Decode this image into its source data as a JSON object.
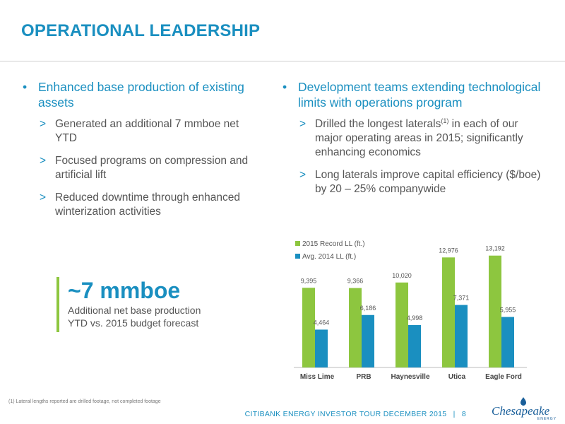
{
  "title": "OPERATIONAL LEADERSHIP",
  "left": {
    "bullet": "Enhanced base production of existing assets",
    "subs": [
      "Generated an additional 7 mmboe net YTD",
      "Focused programs on compression and artificial lift",
      "Reduced downtime through enhanced winterization activities"
    ]
  },
  "right": {
    "bullet": "Development teams extending technological limits with operations program",
    "sub1_a": "Drilled the longest laterals",
    "sub1_sup": "(1)",
    "sub1_b": " in each of our major operating areas in 2015; significantly enhancing economics",
    "sub2": "Long laterals improve capital efficiency ($/boe) by 20 – 25% companywide"
  },
  "callout": {
    "big": "~7 mmboe",
    "line1": "Additional net base production",
    "line2": "YTD vs. 2015 budget forecast"
  },
  "bullet_glyph": "•",
  "chevron_glyph": ">",
  "chart_data": {
    "type": "bar",
    "categories": [
      "Miss Lime",
      "PRB",
      "Haynesville",
      "Utica",
      "Eagle Ford"
    ],
    "series": [
      {
        "name": "2015 Record LL (ft.)",
        "values": [
          9395,
          9366,
          10020,
          12976,
          13192
        ],
        "labels": [
          "9,395",
          "9,366",
          "10,020",
          "12,976",
          "13,192"
        ],
        "color": "#8dc63f"
      },
      {
        "name": "Avg. 2014 LL (ft.)",
        "values": [
          4464,
          6186,
          4998,
          7371,
          5955
        ],
        "labels": [
          "4,464",
          "6,186",
          "4,998",
          "7,371",
          "5,955"
        ],
        "color": "#1a8fc0"
      }
    ],
    "ylim": [
      0,
      14000
    ],
    "legend": "top-left",
    "grid": false
  },
  "footnote": "(1)   Lateral lengths reported are drilled footage, not completed footage",
  "footer": {
    "text": "CITIBANK ENERGY INVESTOR TOUR DECEMBER 2015",
    "separator": "|",
    "page": "8"
  },
  "logo": {
    "word": "Chesapeake",
    "sub": "ENERGY"
  }
}
